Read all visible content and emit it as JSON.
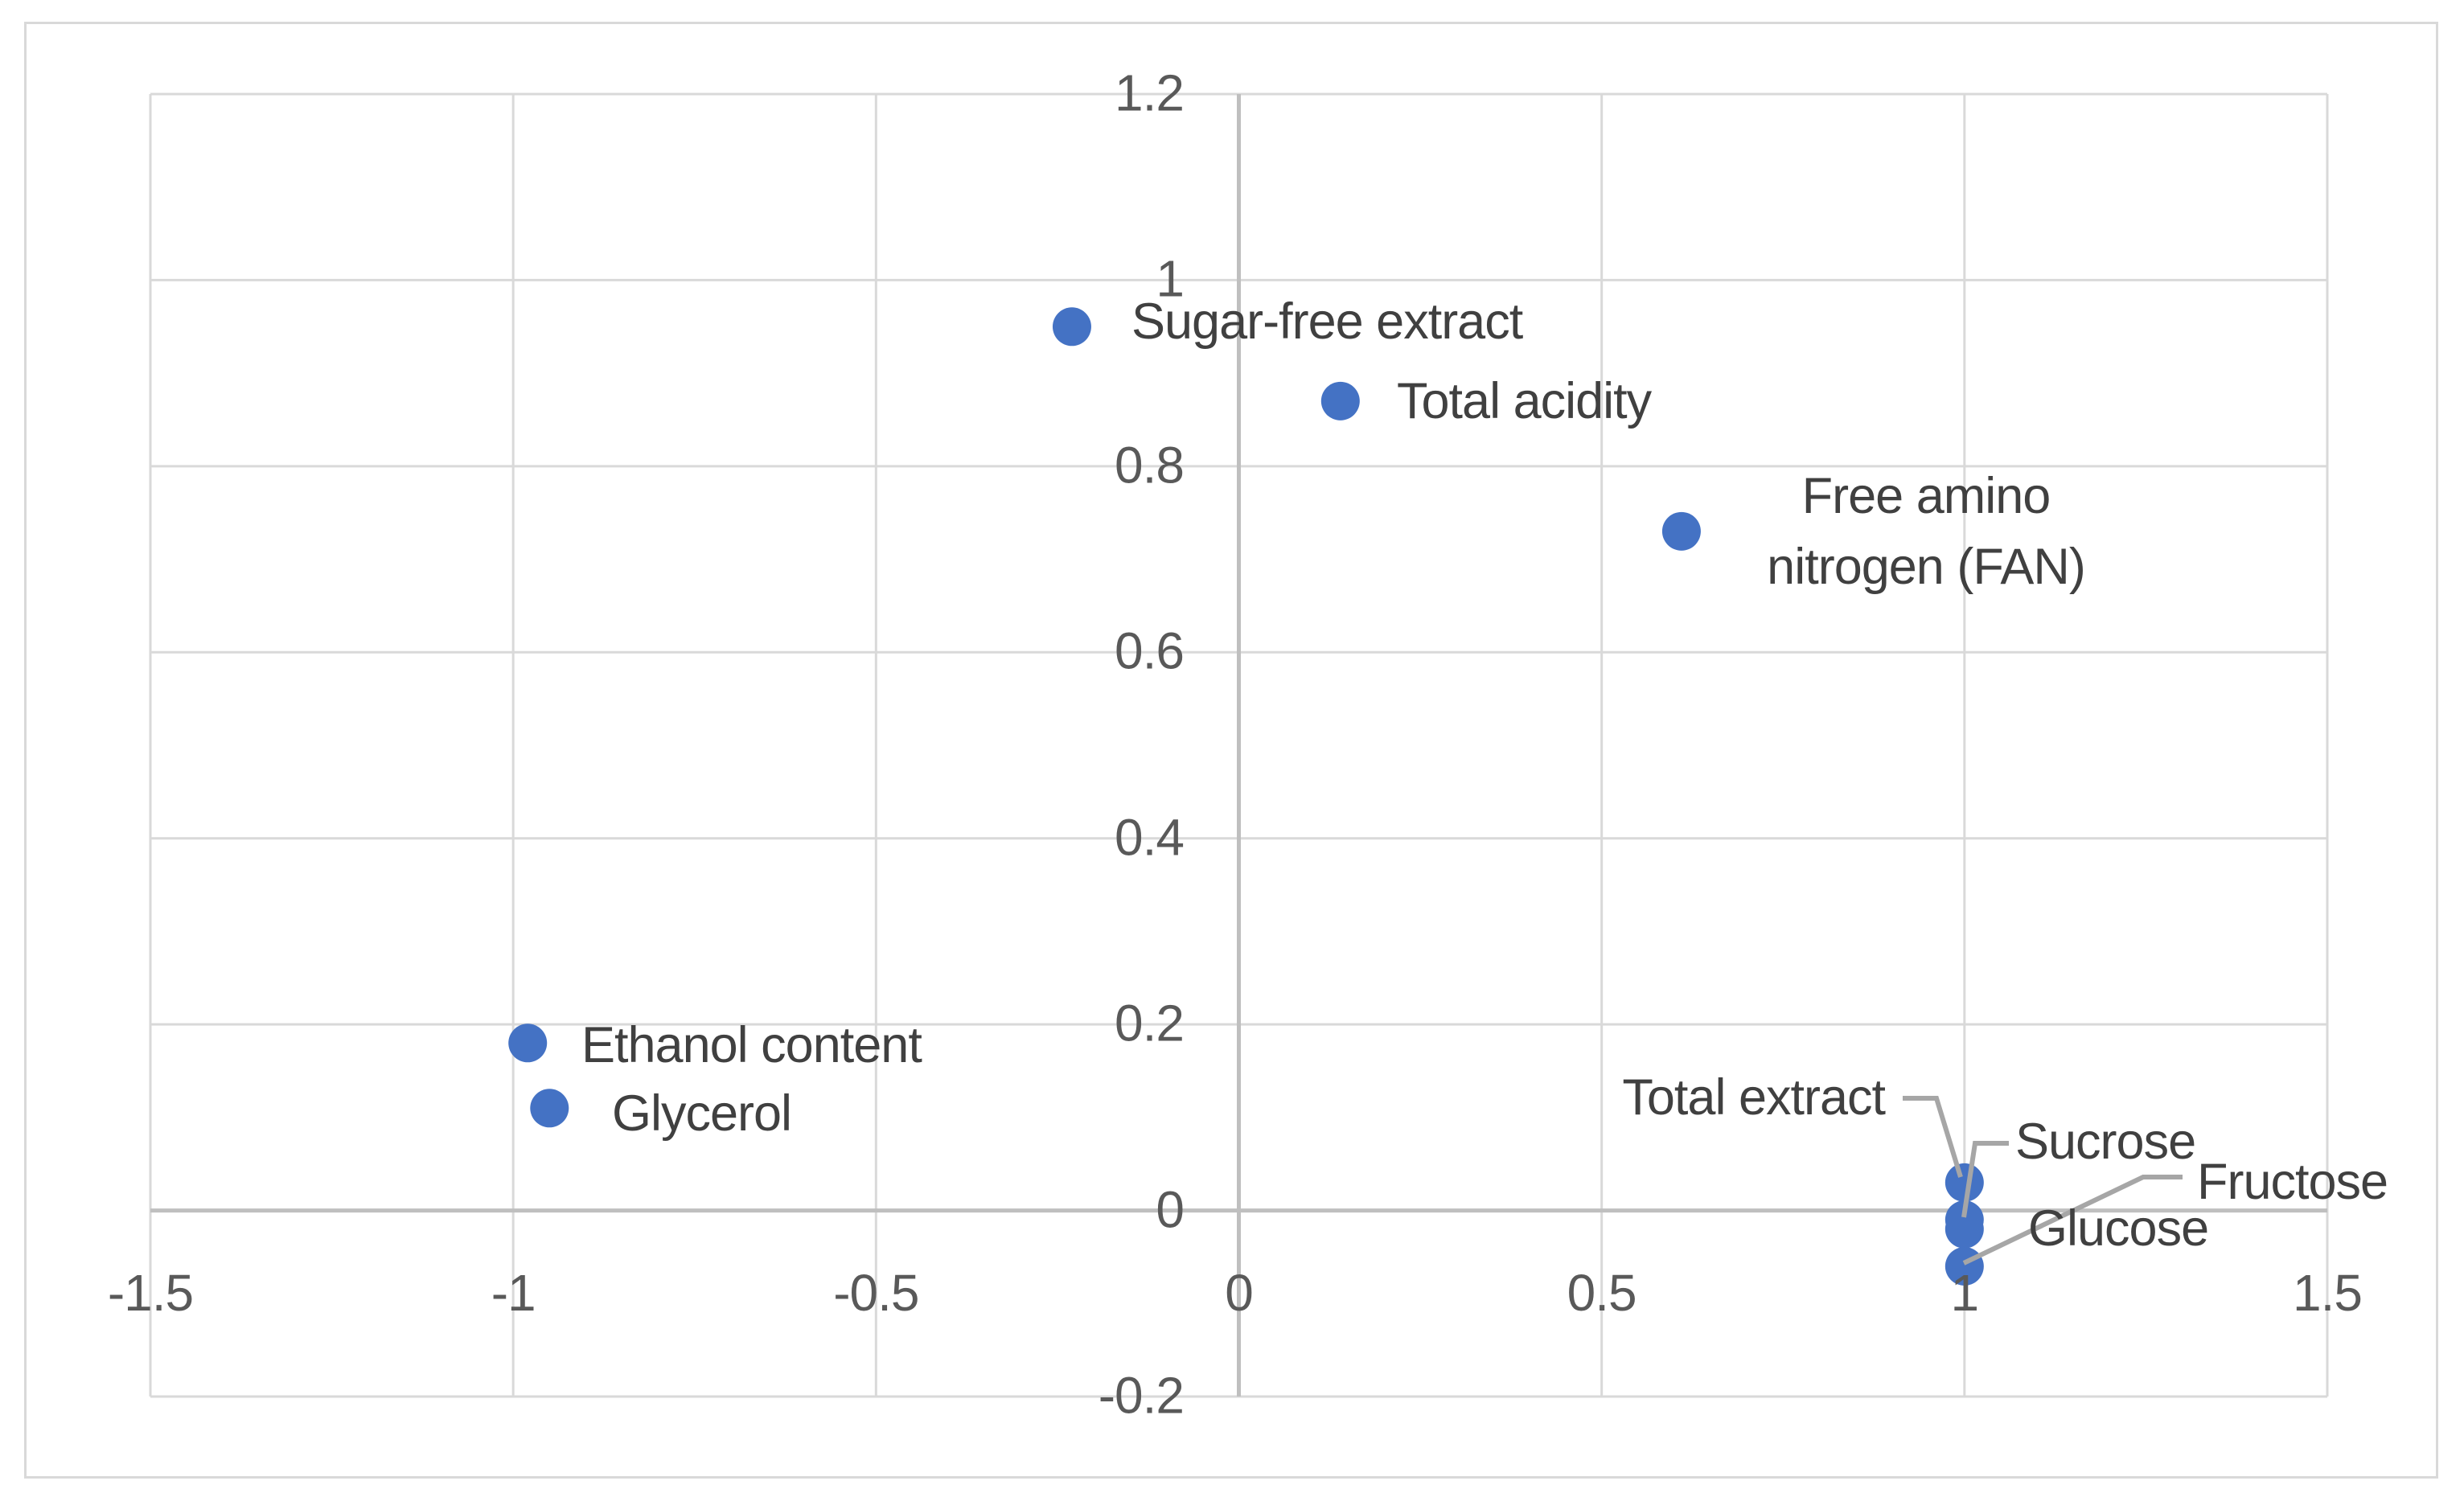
{
  "figure": {
    "background": "#FFFFFF",
    "border_color": "#D9D9D9"
  },
  "chart_data": {
    "type": "scatter",
    "title": "",
    "xlabel": "",
    "ylabel": "",
    "xlim": [
      -1.5,
      1.5
    ],
    "ylim": [
      -0.2,
      1.2
    ],
    "grid": true,
    "legend": false,
    "x_ticks": [
      "-1.5",
      "-1",
      "-0.5",
      "0",
      "0.5",
      "1",
      "1.5"
    ],
    "y_ticks": [
      "1.2",
      "1",
      "0.8",
      "0.6",
      "0.4",
      "0.2",
      "0",
      "-0.2"
    ],
    "marker_color": "#4472C4",
    "gridline_color": "#D9D9D9",
    "axis_line_color": "#BFBFBF",
    "leader_line_color": "#A6A6A6",
    "label_color": "#404040",
    "tick_label_color": "#595959",
    "points": [
      {
        "label": "Sugar-free extract",
        "x": -0.23,
        "y": 0.95
      },
      {
        "label": "Total acidity",
        "x": 0.14,
        "y": 0.87
      },
      {
        "label": "Free amino nitrogen (FAN)",
        "label_lines": [
          "Free amino",
          "nitrogen (FAN)"
        ],
        "x": 0.61,
        "y": 0.73
      },
      {
        "label": "Ethanol content",
        "x": -0.98,
        "y": 0.18
      },
      {
        "label": "Glycerol",
        "x": -0.95,
        "y": 0.11
      },
      {
        "label": "Total extract",
        "x": 1.0,
        "y": 0.03
      },
      {
        "label": "Sucrose",
        "x": 1.0,
        "y": -0.01
      },
      {
        "label": "Glucose",
        "x": 1.0,
        "y": -0.02
      },
      {
        "label": "Fructose",
        "x": 1.0,
        "y": -0.06
      }
    ]
  }
}
